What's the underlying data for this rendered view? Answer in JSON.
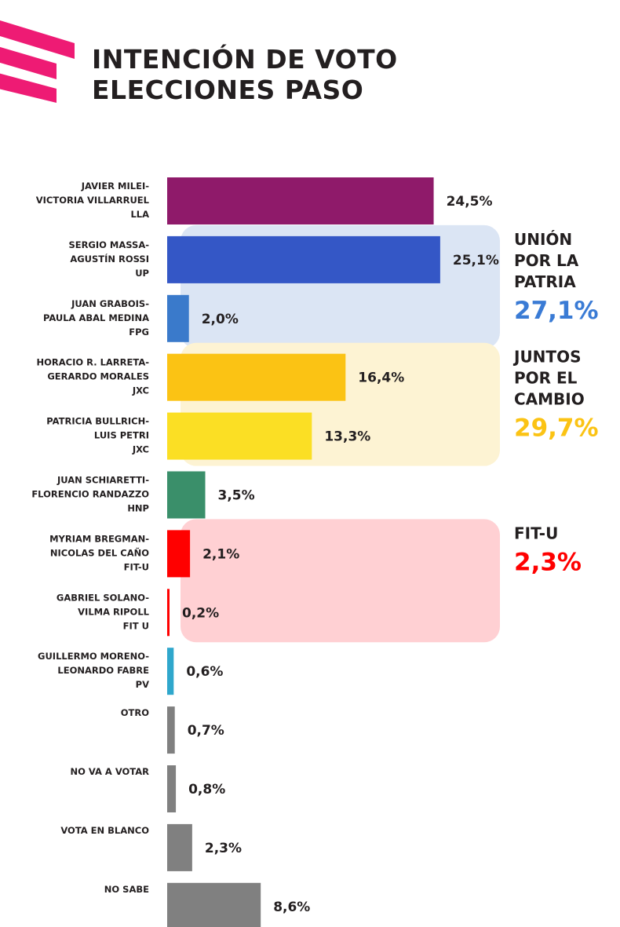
{
  "title": {
    "line1": "INTENCIÓN DE VOTO",
    "line2": "ELECCIONES PASO"
  },
  "colors": {
    "brand": "#ee1b74",
    "title": "#231f20"
  },
  "chart_data": {
    "type": "bar",
    "orientation": "horizontal",
    "xlim": [
      0,
      26
    ],
    "value_format": "percent-comma-1dp",
    "categories": [
      [
        "JAVIER MILEI-",
        "VICTORIA VILLARRUEL",
        "LLA"
      ],
      [
        "SERGIO MASSA-",
        "AGUSTÍN ROSSI",
        "UP"
      ],
      [
        "JUAN GRABOIS-",
        "PAULA ABAL MEDINA",
        "FPG"
      ],
      [
        "HORACIO R. LARRETA-",
        "GERARDO MORALES",
        "JXC"
      ],
      [
        "PATRICIA BULLRICH-",
        "LUIS PETRI",
        "JXC"
      ],
      [
        "JUAN SCHIARETTI-",
        "FLORENCIO RANDAZZO",
        "HNP"
      ],
      [
        "MYRIAM BREGMAN-",
        "NICOLAS DEL CAÑO",
        "FIT-U"
      ],
      [
        "GABRIEL SOLANO-",
        "VILMA RIPOLL",
        "FIT U"
      ],
      [
        "GUILLERMO MORENO-",
        "LEONARDO FABRE",
        "PV"
      ],
      [
        "OTRO"
      ],
      [
        "NO VA A VOTAR"
      ],
      [
        "VOTA EN BLANCO"
      ],
      [
        "NO SABE"
      ]
    ],
    "values": [
      24.5,
      25.1,
      2.0,
      16.4,
      13.3,
      3.5,
      2.1,
      0.2,
      0.6,
      0.7,
      0.8,
      2.3,
      8.6
    ],
    "value_labels": [
      "24,5%",
      "25,1%",
      "2,0%",
      "16,4%",
      "13,3%",
      "3,5%",
      "2,1%",
      "0,2%",
      "0,6%",
      "0,7%",
      "0,8%",
      "2,3%",
      "8,6%"
    ],
    "bar_colors": [
      "#8f1a6a",
      "#3457c6",
      "#3a7acb",
      "#fbc314",
      "#fbdf24",
      "#3a8f6a",
      "#ff0000",
      "#ff0000",
      "#2fa7cc",
      "#808080",
      "#808080",
      "#808080",
      "#808080"
    ],
    "groups": [
      {
        "name_lines": [
          "UNIÓN",
          "POR LA",
          "PATRIA"
        ],
        "total": "27,1%",
        "rows": [
          1,
          2
        ],
        "color": "#3a7bd5",
        "bg": "#dbe5f4"
      },
      {
        "name_lines": [
          "JUNTOS",
          "POR EL",
          "CAMBIO"
        ],
        "total": "29,7%",
        "rows": [
          3,
          4
        ],
        "color": "#fbc314",
        "bg": "#fdf3d3"
      },
      {
        "name_lines": [
          "FIT-U"
        ],
        "total": "2,3%",
        "rows": [
          6,
          7
        ],
        "color": "#ff0000",
        "bg": "#ffd0d3"
      }
    ]
  }
}
